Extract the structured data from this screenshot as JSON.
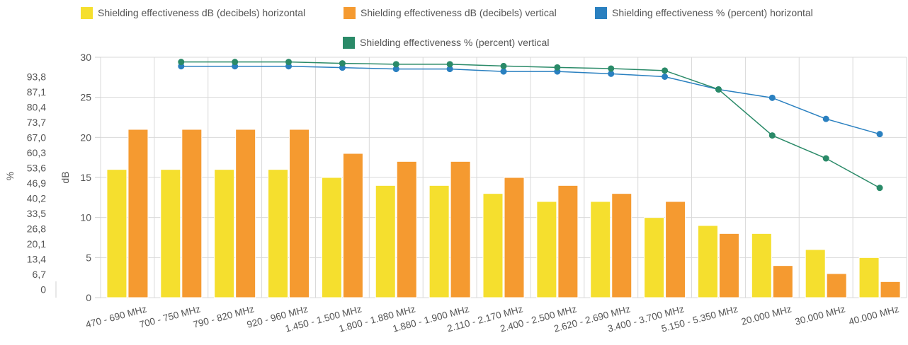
{
  "chart_data": {
    "type": "bar",
    "categories": [
      "470 - 690 MHz",
      "700 - 750 MHz",
      "790 - 820 MHz",
      "920 - 960 MHz",
      "1.450 - 1.500 MHz",
      "1.800 - 1.880 MHz",
      "1.880 - 1.900 MHz",
      "2.110 - 2.170 MHz",
      "2.400 - 2.500 MHz",
      "2.620 - 2.690 MHz",
      "3.400 - 3.700 MHz",
      "5.150 - 5.350 MHz",
      "20.000 MHz",
      "30.000 MHz",
      "40.000 MHz"
    ],
    "series": [
      {
        "name": "Shielding effectiveness dB (decibels) horizontal",
        "kind": "bar",
        "axis": "dB",
        "color": "#f5df2e",
        "values": [
          16,
          16,
          16,
          16,
          15,
          14,
          14,
          13,
          12,
          12,
          10,
          9,
          8,
          6,
          5
        ]
      },
      {
        "name": "Shielding effectiveness dB (decibels) vertical",
        "kind": "bar",
        "axis": "dB",
        "color": "#f59a30",
        "values": [
          21,
          21,
          21,
          21,
          18,
          17,
          17,
          15,
          14,
          13,
          12,
          8,
          4,
          3,
          2
        ]
      },
      {
        "name": "Shielding effectiveness % (percent) horizontal",
        "kind": "line",
        "axis": "percent",
        "color": "#2a80c0",
        "values": [
          null,
          98.4,
          98.4,
          98.4,
          97.8,
          97.2,
          97.2,
          96.1,
          96.1,
          95.1,
          93.8,
          88.2,
          84.5,
          75.2,
          68.5
        ]
      },
      {
        "name": "Shielding effectiveness % (percent) vertical",
        "kind": "line",
        "axis": "percent",
        "color": "#2a8a68",
        "values": [
          null,
          100.3,
          100.3,
          100.3,
          99.7,
          99.3,
          99.3,
          98.5,
          97.9,
          97.4,
          96.5,
          88.2,
          67.9,
          57.8,
          44.8
        ]
      }
    ],
    "y_left": {
      "label": "%",
      "ticks": [
        "0",
        "6,7",
        "13,4",
        "20,1",
        "26,8",
        "33,5",
        "40,2",
        "46,9",
        "53,6",
        "60,3",
        "67,0",
        "73,7",
        "80,4",
        "87,1",
        "93,8"
      ],
      "tick_values": [
        0,
        6.7,
        13.4,
        20.1,
        26.8,
        33.5,
        40.2,
        46.9,
        53.6,
        60.3,
        67.0,
        73.7,
        80.4,
        87.1,
        93.8
      ]
    },
    "y_right": {
      "label": "dB",
      "ticks": [
        "0",
        "5",
        "10",
        "15",
        "20",
        "25",
        "30"
      ],
      "ylim": [
        0,
        30
      ]
    },
    "legend_position": "top",
    "grid": true
  }
}
